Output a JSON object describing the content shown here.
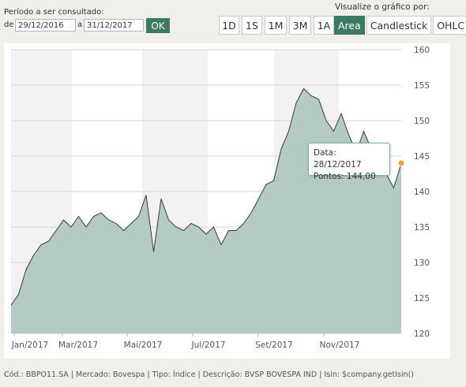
{
  "period": {
    "label": "Período a ser consultado:",
    "from_label": "de",
    "from_value": "29/12/2016",
    "to_label": "a",
    "to_value": "31/12/2017",
    "ok_label": "OK"
  },
  "ranges": {
    "items": [
      "1D",
      "1S",
      "1M",
      "3M",
      "1A"
    ]
  },
  "view": {
    "label": "Visualize o gráfico por:",
    "types": [
      "Area",
      "Candlestick",
      "OHLC"
    ],
    "active": "Area"
  },
  "colors": {
    "accent": "#3e7a62",
    "area_fill": "#b4cac2",
    "line": "#3a3a3a",
    "marker": "#f0a030",
    "band": "#f2f2f2"
  },
  "chart_data": {
    "type": "area",
    "x_ticks": [
      "Jan/2017",
      "Mar/2017",
      "Mai/2017",
      "Jul/2017",
      "Set/2017",
      "Nov/2017"
    ],
    "y_ticks": [
      120,
      125,
      130,
      135,
      140,
      145,
      150,
      155,
      160
    ],
    "ylim": [
      120,
      160
    ],
    "grid": true,
    "series": [
      {
        "x": [
          "29/12/2016",
          "05/01/2017",
          "12/01/2017",
          "19/01/2017",
          "26/01/2017",
          "02/02/2017",
          "09/02/2017",
          "16/02/2017",
          "23/02/2017",
          "02/03/2017",
          "09/03/2017",
          "16/03/2017",
          "23/03/2017",
          "30/03/2017",
          "06/04/2017",
          "13/04/2017",
          "20/04/2017",
          "27/04/2017",
          "04/05/2017",
          "11/05/2017",
          "18/05/2017",
          "25/05/2017",
          "01/06/2017",
          "08/06/2017",
          "15/06/2017",
          "22/06/2017",
          "29/06/2017",
          "06/07/2017",
          "13/07/2017",
          "20/07/2017",
          "27/07/2017",
          "03/08/2017",
          "10/08/2017",
          "17/08/2017",
          "24/08/2017",
          "31/08/2017",
          "07/09/2017",
          "14/09/2017",
          "21/09/2017",
          "28/09/2017",
          "05/10/2017",
          "12/10/2017",
          "19/10/2017",
          "26/10/2017",
          "02/11/2017",
          "09/11/2017",
          "16/11/2017",
          "23/11/2017",
          "30/11/2017",
          "07/12/2017",
          "14/12/2017",
          "21/12/2017",
          "28/12/2017"
        ],
        "values": [
          124.0,
          125.5,
          129.0,
          131.0,
          132.5,
          133.0,
          134.5,
          136.0,
          135.0,
          136.5,
          135.0,
          136.5,
          137.0,
          136.0,
          135.5,
          134.5,
          135.5,
          136.5,
          139.5,
          131.5,
          139.0,
          136.0,
          135.0,
          134.5,
          135.5,
          135.0,
          134.0,
          135.0,
          132.5,
          134.5,
          134.5,
          135.5,
          137.0,
          139.0,
          141.0,
          141.5,
          146.0,
          148.5,
          152.5,
          154.5,
          153.5,
          153.0,
          150.0,
          148.5,
          151.0,
          148.0,
          145.5,
          148.5,
          146.0,
          143.0,
          142.5,
          140.5,
          144.0
        ]
      }
    ],
    "tooltip": {
      "date": "28/12/2017",
      "value": "144,00"
    }
  },
  "tooltip": {
    "line1": "Data: 28/12/2017",
    "line2": "Pontos: 144,00"
  },
  "footer": {
    "text": "Cód.: BBPO11.SA | Mercado: Bovespa | Tipo: Índice | Descrição: BVSP BOVESPA IND | Isin: $company.getIsin()"
  }
}
